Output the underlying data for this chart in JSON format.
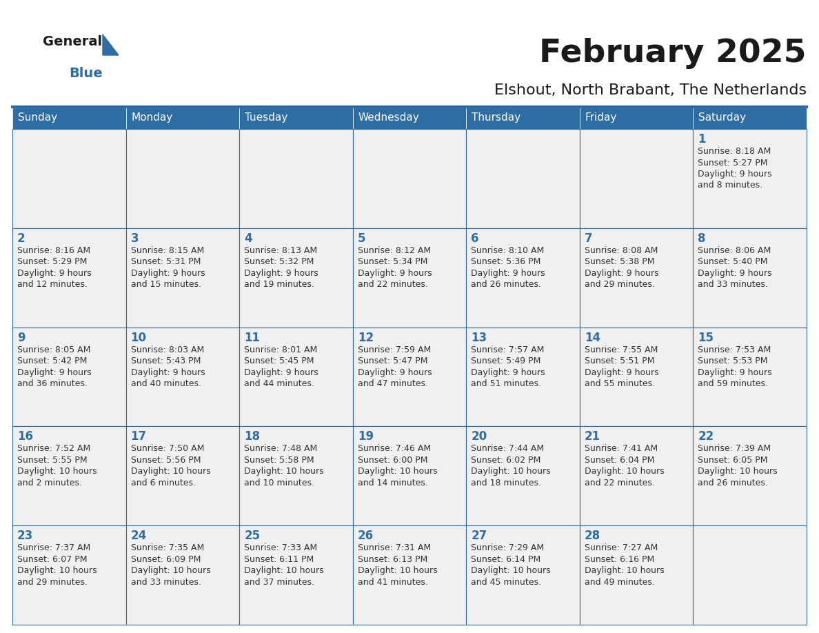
{
  "title": "February 2025",
  "subtitle": "Elshout, North Brabant, The Netherlands",
  "days_of_week": [
    "Sunday",
    "Monday",
    "Tuesday",
    "Wednesday",
    "Thursday",
    "Friday",
    "Saturday"
  ],
  "header_bg": "#2E6DA4",
  "header_text": "#FFFFFF",
  "cell_bg": "#F0F0F0",
  "border_color": "#2E6DA4",
  "day_number_color": "#2E6DA4",
  "text_color": "#333333",
  "logo_black": "#1a1a1a",
  "logo_blue": "#2E6DA4",
  "calendar_data": [
    [
      null,
      null,
      null,
      null,
      null,
      null,
      {
        "day": 1,
        "sunrise": "8:18 AM",
        "sunset": "5:27 PM",
        "daylight_hours": 9,
        "daylight_minutes": 8
      }
    ],
    [
      {
        "day": 2,
        "sunrise": "8:16 AM",
        "sunset": "5:29 PM",
        "daylight_hours": 9,
        "daylight_minutes": 12
      },
      {
        "day": 3,
        "sunrise": "8:15 AM",
        "sunset": "5:31 PM",
        "daylight_hours": 9,
        "daylight_minutes": 15
      },
      {
        "day": 4,
        "sunrise": "8:13 AM",
        "sunset": "5:32 PM",
        "daylight_hours": 9,
        "daylight_minutes": 19
      },
      {
        "day": 5,
        "sunrise": "8:12 AM",
        "sunset": "5:34 PM",
        "daylight_hours": 9,
        "daylight_minutes": 22
      },
      {
        "day": 6,
        "sunrise": "8:10 AM",
        "sunset": "5:36 PM",
        "daylight_hours": 9,
        "daylight_minutes": 26
      },
      {
        "day": 7,
        "sunrise": "8:08 AM",
        "sunset": "5:38 PM",
        "daylight_hours": 9,
        "daylight_minutes": 29
      },
      {
        "day": 8,
        "sunrise": "8:06 AM",
        "sunset": "5:40 PM",
        "daylight_hours": 9,
        "daylight_minutes": 33
      }
    ],
    [
      {
        "day": 9,
        "sunrise": "8:05 AM",
        "sunset": "5:42 PM",
        "daylight_hours": 9,
        "daylight_minutes": 36
      },
      {
        "day": 10,
        "sunrise": "8:03 AM",
        "sunset": "5:43 PM",
        "daylight_hours": 9,
        "daylight_minutes": 40
      },
      {
        "day": 11,
        "sunrise": "8:01 AM",
        "sunset": "5:45 PM",
        "daylight_hours": 9,
        "daylight_minutes": 44
      },
      {
        "day": 12,
        "sunrise": "7:59 AM",
        "sunset": "5:47 PM",
        "daylight_hours": 9,
        "daylight_minutes": 47
      },
      {
        "day": 13,
        "sunrise": "7:57 AM",
        "sunset": "5:49 PM",
        "daylight_hours": 9,
        "daylight_minutes": 51
      },
      {
        "day": 14,
        "sunrise": "7:55 AM",
        "sunset": "5:51 PM",
        "daylight_hours": 9,
        "daylight_minutes": 55
      },
      {
        "day": 15,
        "sunrise": "7:53 AM",
        "sunset": "5:53 PM",
        "daylight_hours": 9,
        "daylight_minutes": 59
      }
    ],
    [
      {
        "day": 16,
        "sunrise": "7:52 AM",
        "sunset": "5:55 PM",
        "daylight_hours": 10,
        "daylight_minutes": 2
      },
      {
        "day": 17,
        "sunrise": "7:50 AM",
        "sunset": "5:56 PM",
        "daylight_hours": 10,
        "daylight_minutes": 6
      },
      {
        "day": 18,
        "sunrise": "7:48 AM",
        "sunset": "5:58 PM",
        "daylight_hours": 10,
        "daylight_minutes": 10
      },
      {
        "day": 19,
        "sunrise": "7:46 AM",
        "sunset": "6:00 PM",
        "daylight_hours": 10,
        "daylight_minutes": 14
      },
      {
        "day": 20,
        "sunrise": "7:44 AM",
        "sunset": "6:02 PM",
        "daylight_hours": 10,
        "daylight_minutes": 18
      },
      {
        "day": 21,
        "sunrise": "7:41 AM",
        "sunset": "6:04 PM",
        "daylight_hours": 10,
        "daylight_minutes": 22
      },
      {
        "day": 22,
        "sunrise": "7:39 AM",
        "sunset": "6:05 PM",
        "daylight_hours": 10,
        "daylight_minutes": 26
      }
    ],
    [
      {
        "day": 23,
        "sunrise": "7:37 AM",
        "sunset": "6:07 PM",
        "daylight_hours": 10,
        "daylight_minutes": 29
      },
      {
        "day": 24,
        "sunrise": "7:35 AM",
        "sunset": "6:09 PM",
        "daylight_hours": 10,
        "daylight_minutes": 33
      },
      {
        "day": 25,
        "sunrise": "7:33 AM",
        "sunset": "6:11 PM",
        "daylight_hours": 10,
        "daylight_minutes": 37
      },
      {
        "day": 26,
        "sunrise": "7:31 AM",
        "sunset": "6:13 PM",
        "daylight_hours": 10,
        "daylight_minutes": 41
      },
      {
        "day": 27,
        "sunrise": "7:29 AM",
        "sunset": "6:14 PM",
        "daylight_hours": 10,
        "daylight_minutes": 45
      },
      {
        "day": 28,
        "sunrise": "7:27 AM",
        "sunset": "6:16 PM",
        "daylight_hours": 10,
        "daylight_minutes": 49
      },
      null
    ]
  ]
}
